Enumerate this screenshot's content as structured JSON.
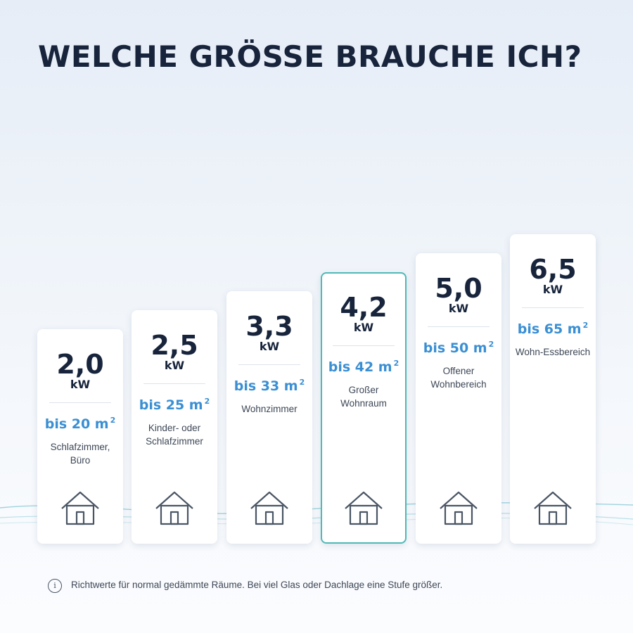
{
  "title": "WELCHE GRÖSSE BRAUCHE ICH?",
  "accent_color": "#3a8fd3",
  "highlight_color": "#4fb9b6",
  "cards": [
    {
      "power": "2,0",
      "unit": "kW",
      "area": "bis 20 m",
      "area_sup": "2",
      "room": "Schlafzimmer, Büro",
      "icon": "house-icon",
      "highlighted": false
    },
    {
      "power": "2,5",
      "unit": "kW",
      "area": "bis 25 m",
      "area_sup": "2",
      "room": "Kinder- oder Schlafzimmer",
      "icon": "house-icon",
      "highlighted": false
    },
    {
      "power": "3,3",
      "unit": "kW",
      "area": "bis 33 m",
      "area_sup": "2",
      "room": "Wohnzimmer",
      "icon": "house-icon",
      "highlighted": false
    },
    {
      "power": "4,2",
      "unit": "kW",
      "area": "bis 42 m",
      "area_sup": "2",
      "room": "Großer Wohnraum",
      "icon": "house-icon",
      "highlighted": true
    },
    {
      "power": "5,0",
      "unit": "kW",
      "area": "bis 50 m",
      "area_sup": "2",
      "room": "Offener Wohnbereich",
      "icon": "house-icon",
      "highlighted": false
    },
    {
      "power": "6,5",
      "unit": "kW",
      "area": "bis 65 m",
      "area_sup": "2",
      "room": "Wohn-Essbereich",
      "icon": "house-icon",
      "highlighted": false
    }
  ],
  "note": {
    "icon": "info-icon",
    "icon_glyph": "i",
    "text": "Richtwerte für normal gedämmte Räume. Bei viel Glas oder Dachlage eine Stufe größer."
  }
}
